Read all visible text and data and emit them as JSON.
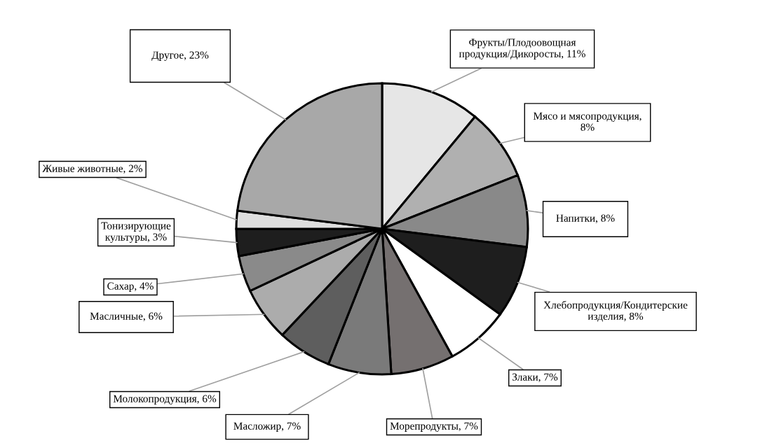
{
  "chart_data": {
    "type": "pie",
    "categories": [
      "Фрукты/Плодоовощная\nпродукция/Дикоросты, 11%",
      "Мясо и мясопродукция,\n8%",
      "Напитки, 8%",
      "Хлебопродукция/Кондитерские\nизделия, 8%",
      "Злаки, 7%",
      "Морепродукты, 7%",
      "Масложир, 7%",
      "Молокопродукция, 6%",
      "Масличные, 6%",
      "Сахар, 4%",
      "Тонизирующие\nкультуры, 3%",
      "Живые животные, 2%",
      "Другое, 23%"
    ],
    "values": [
      11,
      8,
      8,
      8,
      7,
      7,
      7,
      6,
      6,
      4,
      3,
      2,
      23
    ],
    "colors": [
      "#e6e6e6",
      "#b0b0b0",
      "#898989",
      "#1e1e1e",
      "#ffffff",
      "#757070",
      "#7a7a7a",
      "#5e5e5e",
      "#acacac",
      "#8a8a8a",
      "#1e1e1e",
      "#dedede",
      "#a8a8a8"
    ]
  }
}
